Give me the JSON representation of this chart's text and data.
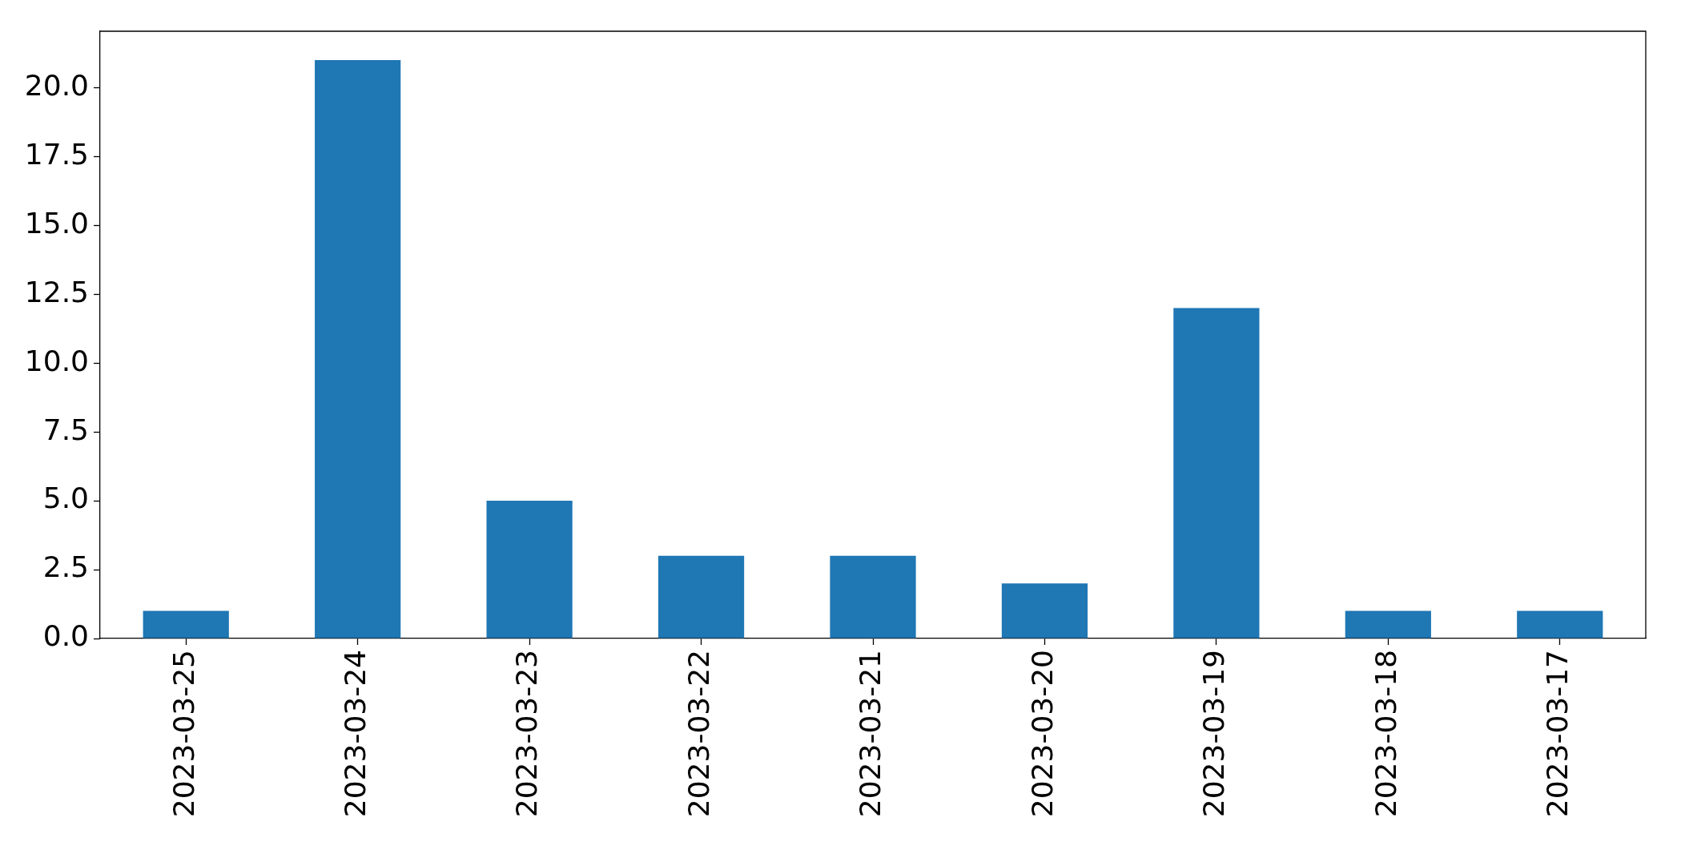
{
  "chart_data": {
    "type": "bar",
    "categories": [
      "2023-03-25",
      "2023-03-24",
      "2023-03-23",
      "2023-03-22",
      "2023-03-21",
      "2023-03-20",
      "2023-03-19",
      "2023-03-18",
      "2023-03-17"
    ],
    "values": [
      1,
      21,
      5,
      3,
      3,
      2,
      12,
      1,
      1
    ],
    "color": "#1f77b4",
    "ylim": [
      0,
      22.05
    ],
    "yticks": [
      {
        "value": 0,
        "label": "0.0"
      },
      2.5,
      {
        "value": 5,
        "label": "5.0"
      },
      7.5,
      {
        "value": 10,
        "label": "10.0"
      },
      12.5,
      {
        "value": 15,
        "label": "15.0"
      },
      17.5,
      {
        "value": 20,
        "label": "20.0"
      }
    ]
  }
}
